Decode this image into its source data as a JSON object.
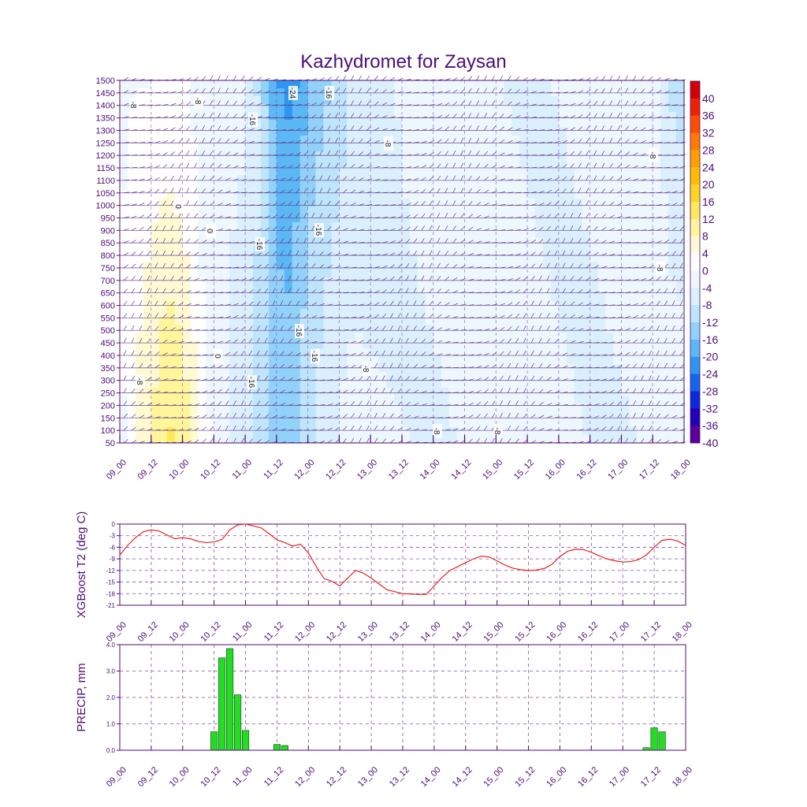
{
  "title": "Kazhydromet for Zaysan",
  "x_ticks": [
    "09_00",
    "09_12",
    "10_00",
    "10_12",
    "11_00",
    "11_12",
    "12_00",
    "12_12",
    "13_00",
    "13_12",
    "14_00",
    "14_12",
    "15_00",
    "15_12",
    "16_00",
    "16_12",
    "17_00",
    "17_12",
    "18_00"
  ],
  "colors": {
    "frame": "#4b0d7a",
    "line": "#e8211c",
    "bar": "#22dd22",
    "grid": "#7a50b8"
  },
  "chart_data": [
    {
      "type": "heatmap",
      "title": "Kazhydromet for Zaysan",
      "y_ticks": [
        1500,
        1450,
        1400,
        1350,
        1300,
        1250,
        1200,
        1150,
        1100,
        1050,
        1000,
        950,
        900,
        850,
        800,
        750,
        700,
        650,
        600,
        550,
        500,
        450,
        400,
        350,
        300,
        250,
        200,
        150,
        100,
        50
      ],
      "ylim": [
        50,
        1500
      ],
      "colorbar": {
        "labels": [
          "40",
          "36",
          "32",
          "28",
          "24",
          "20",
          "16",
          "12",
          "8",
          "4",
          "0",
          "-4",
          "-8",
          "-12",
          "-16",
          "-20",
          "-24",
          "-28",
          "-32",
          "-36",
          "-40"
        ],
        "colors": [
          "#d10000",
          "#ee2200",
          "#fb4f00",
          "#ff7a00",
          "#ffa000",
          "#ffbd00",
          "#ffd41f",
          "#ffe85a",
          "#fff59a",
          "#fffad2",
          "#ffffff",
          "#eef7fd",
          "#dbf0fc",
          "#bfe5fa",
          "#93d2f8",
          "#5bb8f5",
          "#2f95f0",
          "#1565e8",
          "#0a2bd8",
          "#2400b4",
          "#5a0098"
        ]
      },
      "contour_labels": [
        "-24",
        "-16",
        "-16",
        "-16",
        "-16",
        "-16",
        "-16",
        "-16",
        "-8",
        "-8",
        "-8",
        "-8",
        "-8",
        "-8",
        "-8",
        "-8",
        "-8",
        "-8",
        "-8",
        "0",
        "0",
        "0"
      ]
    },
    {
      "type": "line",
      "ylabel": "XGBoost T2 (deg C)",
      "y_ticks": [
        "0",
        "-3",
        "-6",
        "-9",
        "-12",
        "-15",
        "-18",
        "-21"
      ],
      "ylim": [
        -21,
        0
      ],
      "x": [
        0,
        1,
        2,
        3,
        4,
        5,
        6,
        7,
        8,
        9,
        10,
        11,
        12,
        13,
        14,
        15,
        16,
        17,
        18,
        19,
        20,
        21,
        22,
        23,
        24,
        25,
        26,
        27,
        28,
        29,
        30,
        31,
        32,
        33,
        34,
        35,
        36,
        37,
        38,
        39,
        40,
        41,
        42,
        43,
        44,
        45,
        46,
        47,
        48,
        49,
        50,
        51,
        52,
        53,
        54,
        55,
        56,
        57,
        58,
        59,
        60,
        61,
        62,
        63,
        64,
        65,
        66,
        67,
        68,
        69,
        70,
        71,
        72
      ],
      "values": [
        -8,
        -5.5,
        -3.5,
        -2,
        -1.5,
        -1.8,
        -2.8,
        -3.8,
        -3.5,
        -3.8,
        -4.5,
        -4.8,
        -4.6,
        -4,
        -1.5,
        -0.2,
        0,
        -0.5,
        -1,
        -2.5,
        -4.1,
        -4.8,
        -5.7,
        -5.2,
        -7.5,
        -11,
        -14.1,
        -14.8,
        -16,
        -14,
        -12,
        -12.7,
        -14,
        -15.5,
        -17,
        -17.5,
        -18,
        -18.1,
        -18.2,
        -18.2,
        -16,
        -13.8,
        -12,
        -11,
        -10,
        -9,
        -8.3,
        -8.5,
        -9.5,
        -10.6,
        -11.4,
        -11.8,
        -12,
        -11.9,
        -11.5,
        -10.4,
        -8.4,
        -7,
        -6.5,
        -6.6,
        -7.3,
        -8.2,
        -9,
        -9.5,
        -9.8,
        -9.7,
        -9.2,
        -8,
        -6,
        -4.2,
        -3.9,
        -4.4,
        -5.5
      ]
    },
    {
      "type": "bar",
      "ylabel": "PRECIP, mm",
      "y_ticks": [
        "4.0",
        "3.0",
        "2.0",
        "1.0",
        "0.0"
      ],
      "ylim": [
        0,
        4
      ],
      "x": [
        12,
        13,
        14,
        15,
        16,
        20,
        21,
        67,
        68,
        69
      ],
      "values": [
        0.7,
        3.5,
        3.85,
        2.1,
        0.75,
        0.22,
        0.18,
        0.1,
        0.85,
        0.7
      ]
    }
  ]
}
